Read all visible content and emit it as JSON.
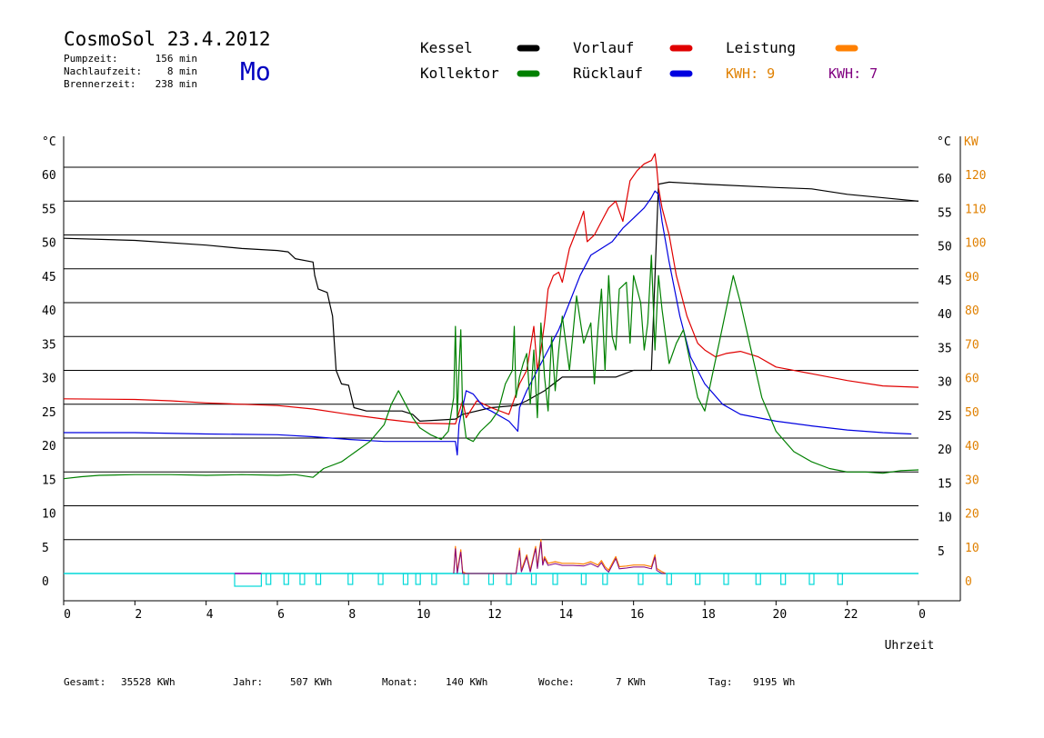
{
  "header": {
    "title": "CosmoSol 23.4.2012",
    "day": "Mo",
    "stats": [
      {
        "label": "Pumpzeit:",
        "value": "156 min"
      },
      {
        "label": "Nachlaufzeit:",
        "value": "8 min"
      },
      {
        "label": "Brennerzeit:",
        "value": "238 min"
      }
    ]
  },
  "legend": {
    "items": [
      {
        "label": "Kessel",
        "color": "#000000"
      },
      {
        "label": "Vorlauf",
        "color": "#e00000"
      },
      {
        "label": "Leistung",
        "color": "#ff8000"
      },
      {
        "label": "Kollektor",
        "color": "#008000"
      },
      {
        "label": "Rücklauf",
        "color": "#0000e0"
      }
    ],
    "kwh": [
      {
        "text": "KWH: 9",
        "color": "#e08000"
      },
      {
        "text": "KWH: 7",
        "color": "#800080"
      }
    ]
  },
  "footer": [
    {
      "label": "Gesamt:",
      "value": "35528 KWh"
    },
    {
      "label": "Jahr:",
      "value": "507 KWh"
    },
    {
      "label": "Monat:",
      "value": "140 KWh"
    },
    {
      "label": "Woche:",
      "value": "7 KWh"
    },
    {
      "label": "Tag:",
      "value": "9195 Wh"
    }
  ],
  "chart_data": {
    "type": "line",
    "xlabel": "Uhrzeit",
    "ylabel": "°C",
    "y2label": "KW",
    "xlim": [
      0,
      24
    ],
    "ylim": [
      0,
      65
    ],
    "y2lim": [
      0,
      130
    ],
    "x_ticks": [
      "0",
      "2",
      "4",
      "6",
      "8",
      "10",
      "12",
      "14",
      "16",
      "18",
      "20",
      "22",
      "0"
    ],
    "y_ticks": [
      "0",
      "5",
      "10",
      "15",
      "20",
      "25",
      "30",
      "35",
      "40",
      "45",
      "50",
      "55",
      "60"
    ],
    "y2_ticks": [
      "0",
      "10",
      "20",
      "30",
      "40",
      "50",
      "60",
      "70",
      "80",
      "90",
      "100",
      "110",
      "120"
    ],
    "grid": true,
    "series": [
      {
        "name": "Kessel",
        "color": "#000000",
        "points": [
          [
            0,
            49.5
          ],
          [
            2,
            49.2
          ],
          [
            4,
            48.5
          ],
          [
            5,
            48
          ],
          [
            6,
            47.7
          ],
          [
            6.3,
            47.5
          ],
          [
            6.5,
            46.5
          ],
          [
            7,
            46
          ],
          [
            7.05,
            44
          ],
          [
            7.15,
            42
          ],
          [
            7.4,
            41.5
          ],
          [
            7.55,
            38
          ],
          [
            7.65,
            30
          ],
          [
            7.8,
            28
          ],
          [
            8,
            27.8
          ],
          [
            8.15,
            24.5
          ],
          [
            8.5,
            24
          ],
          [
            9.5,
            24
          ],
          [
            9.8,
            23.5
          ],
          [
            10,
            22.5
          ],
          [
            11,
            22.8
          ],
          [
            11.2,
            23.5
          ],
          [
            12,
            24.5
          ],
          [
            12.7,
            24.8
          ],
          [
            13,
            25.5
          ],
          [
            13.5,
            27
          ],
          [
            14,
            29
          ],
          [
            15,
            29
          ],
          [
            15.5,
            29
          ],
          [
            16,
            30
          ],
          [
            16.5,
            30
          ],
          [
            16.7,
            57.5
          ],
          [
            17,
            57.8
          ],
          [
            18,
            57.5
          ],
          [
            20,
            57
          ],
          [
            21,
            56.8
          ],
          [
            22,
            56
          ],
          [
            24,
            55
          ]
        ]
      },
      {
        "name": "Vorlauf",
        "color": "#e00000",
        "points": [
          [
            0,
            25.8
          ],
          [
            2,
            25.7
          ],
          [
            3,
            25.5
          ],
          [
            4,
            25.2
          ],
          [
            5,
            25
          ],
          [
            6,
            24.8
          ],
          [
            7,
            24.3
          ],
          [
            8,
            23.5
          ],
          [
            9,
            22.8
          ],
          [
            10,
            22.2
          ],
          [
            11,
            22.1
          ],
          [
            11.2,
            25.5
          ],
          [
            11.3,
            23
          ],
          [
            11.6,
            25.5
          ],
          [
            12,
            24.5
          ],
          [
            12.5,
            23.5
          ],
          [
            12.8,
            28
          ],
          [
            13.0,
            30
          ],
          [
            13.2,
            36.5
          ],
          [
            13.3,
            30
          ],
          [
            13.4,
            33
          ],
          [
            13.5,
            37
          ],
          [
            13.6,
            42
          ],
          [
            13.75,
            44
          ],
          [
            13.9,
            44.5
          ],
          [
            14.0,
            43
          ],
          [
            14.2,
            48
          ],
          [
            14.5,
            52
          ],
          [
            14.6,
            53.5
          ],
          [
            14.7,
            49
          ],
          [
            14.9,
            50
          ],
          [
            15.1,
            52
          ],
          [
            15.3,
            54
          ],
          [
            15.5,
            55
          ],
          [
            15.7,
            52
          ],
          [
            15.9,
            58
          ],
          [
            16.1,
            59.5
          ],
          [
            16.3,
            60.5
          ],
          [
            16.5,
            61
          ],
          [
            16.6,
            62
          ],
          [
            16.65,
            60
          ],
          [
            16.7,
            57
          ],
          [
            16.8,
            54
          ],
          [
            17,
            50
          ],
          [
            17.2,
            44
          ],
          [
            17.5,
            38
          ],
          [
            17.8,
            34
          ],
          [
            18,
            33
          ],
          [
            18.3,
            32
          ],
          [
            18.6,
            32.5
          ],
          [
            19,
            32.8
          ],
          [
            19.5,
            32
          ],
          [
            20,
            30.5
          ],
          [
            21,
            29.5
          ],
          [
            22,
            28.5
          ],
          [
            23,
            27.7
          ],
          [
            24,
            27.5
          ]
        ]
      },
      {
        "name": "Rücklauf",
        "color": "#0000e0",
        "points": [
          [
            0,
            20.8
          ],
          [
            2,
            20.8
          ],
          [
            4,
            20.6
          ],
          [
            6,
            20.5
          ],
          [
            7,
            20.2
          ],
          [
            8,
            19.8
          ],
          [
            9,
            19.5
          ],
          [
            10,
            19.5
          ],
          [
            11,
            19.5
          ],
          [
            11.05,
            17.5
          ],
          [
            11.1,
            22
          ],
          [
            11.3,
            27
          ],
          [
            11.5,
            26.5
          ],
          [
            11.8,
            24.5
          ],
          [
            12,
            24
          ],
          [
            12.5,
            22.5
          ],
          [
            12.75,
            21
          ],
          [
            12.8,
            24.5
          ],
          [
            13,
            27
          ],
          [
            13.3,
            30
          ],
          [
            13.6,
            33
          ],
          [
            13.9,
            36
          ],
          [
            14.2,
            40
          ],
          [
            14.5,
            44
          ],
          [
            14.8,
            47
          ],
          [
            15.1,
            48
          ],
          [
            15.4,
            49
          ],
          [
            15.7,
            51
          ],
          [
            16,
            52.5
          ],
          [
            16.3,
            54
          ],
          [
            16.5,
            55.5
          ],
          [
            16.6,
            56.5
          ],
          [
            16.7,
            56
          ],
          [
            16.8,
            52
          ],
          [
            17,
            46
          ],
          [
            17.3,
            38
          ],
          [
            17.6,
            32
          ],
          [
            18,
            28
          ],
          [
            18.5,
            25
          ],
          [
            19,
            23.5
          ],
          [
            19.5,
            23
          ],
          [
            20,
            22.5
          ],
          [
            21,
            21.8
          ],
          [
            22,
            21.2
          ],
          [
            23,
            20.8
          ],
          [
            23.8,
            20.6
          ]
        ]
      },
      {
        "name": "Kollektor",
        "color": "#008000",
        "points": [
          [
            0,
            14
          ],
          [
            0.5,
            14.3
          ],
          [
            1,
            14.5
          ],
          [
            2,
            14.6
          ],
          [
            3,
            14.6
          ],
          [
            4,
            14.5
          ],
          [
            5,
            14.6
          ],
          [
            6,
            14.5
          ],
          [
            6.5,
            14.6
          ],
          [
            7,
            14.2
          ],
          [
            7.3,
            15.5
          ],
          [
            7.8,
            16.5
          ],
          [
            8.2,
            18
          ],
          [
            8.6,
            19.5
          ],
          [
            9,
            22
          ],
          [
            9.2,
            25
          ],
          [
            9.4,
            27
          ],
          [
            9.6,
            25
          ],
          [
            9.8,
            23
          ],
          [
            10,
            21.5
          ],
          [
            10.3,
            20.5
          ],
          [
            10.6,
            19.8
          ],
          [
            10.8,
            21
          ],
          [
            10.95,
            26
          ],
          [
            11.0,
            36.5
          ],
          [
            11.05,
            23
          ],
          [
            11.1,
            30
          ],
          [
            11.15,
            36
          ],
          [
            11.2,
            24
          ],
          [
            11.3,
            20
          ],
          [
            11.5,
            19.5
          ],
          [
            11.7,
            21
          ],
          [
            12,
            22.5
          ],
          [
            12.2,
            24
          ],
          [
            12.4,
            28
          ],
          [
            12.6,
            30
          ],
          [
            12.65,
            36.5
          ],
          [
            12.7,
            26
          ],
          [
            12.8,
            29
          ],
          [
            12.9,
            31
          ],
          [
            13.0,
            32.5
          ],
          [
            13.1,
            25
          ],
          [
            13.2,
            33
          ],
          [
            13.3,
            23
          ],
          [
            13.4,
            37
          ],
          [
            13.5,
            29
          ],
          [
            13.6,
            24
          ],
          [
            13.7,
            35
          ],
          [
            13.8,
            27
          ],
          [
            13.9,
            33
          ],
          [
            14,
            38
          ],
          [
            14.2,
            30
          ],
          [
            14.4,
            41
          ],
          [
            14.6,
            34
          ],
          [
            14.8,
            37
          ],
          [
            14.9,
            28
          ],
          [
            15.0,
            36
          ],
          [
            15.1,
            42
          ],
          [
            15.2,
            30
          ],
          [
            15.3,
            44
          ],
          [
            15.4,
            35
          ],
          [
            15.5,
            33
          ],
          [
            15.6,
            42
          ],
          [
            15.8,
            43
          ],
          [
            15.9,
            34
          ],
          [
            16.0,
            44
          ],
          [
            16.1,
            42
          ],
          [
            16.2,
            40
          ],
          [
            16.3,
            33
          ],
          [
            16.4,
            37
          ],
          [
            16.5,
            47
          ],
          [
            16.6,
            33
          ],
          [
            16.7,
            44
          ],
          [
            16.8,
            39
          ],
          [
            17.0,
            31
          ],
          [
            17.2,
            34
          ],
          [
            17.4,
            36
          ],
          [
            17.6,
            31
          ],
          [
            17.8,
            26
          ],
          [
            18.0,
            24
          ],
          [
            18.2,
            29
          ],
          [
            18.4,
            34
          ],
          [
            18.6,
            39
          ],
          [
            18.8,
            44
          ],
          [
            19.0,
            40
          ],
          [
            19.3,
            33
          ],
          [
            19.6,
            26
          ],
          [
            20,
            21
          ],
          [
            20.5,
            18
          ],
          [
            21,
            16.5
          ],
          [
            21.5,
            15.5
          ],
          [
            22,
            15
          ],
          [
            22.5,
            15
          ],
          [
            23,
            14.8
          ],
          [
            23.5,
            15.2
          ],
          [
            24,
            15.3
          ]
        ]
      },
      {
        "name": "Leistung",
        "color": "#ff8000",
        "points": [
          [
            10.95,
            0
          ],
          [
            11.0,
            8
          ],
          [
            11.05,
            0.5
          ],
          [
            11.15,
            7
          ],
          [
            11.2,
            0.5
          ],
          [
            11.3,
            0
          ],
          [
            12.7,
            0
          ],
          [
            12.8,
            7.5
          ],
          [
            12.85,
            1
          ],
          [
            13.0,
            5.5
          ],
          [
            13.1,
            1
          ],
          [
            13.25,
            8
          ],
          [
            13.3,
            2
          ],
          [
            13.4,
            10
          ],
          [
            13.45,
            3
          ],
          [
            13.5,
            5
          ],
          [
            13.6,
            3
          ],
          [
            13.8,
            3.5
          ],
          [
            14,
            3
          ],
          [
            14.3,
            3
          ],
          [
            14.6,
            2.8
          ],
          [
            14.8,
            3.5
          ],
          [
            15,
            2.5
          ],
          [
            15.1,
            3.8
          ],
          [
            15.2,
            2
          ],
          [
            15.3,
            1
          ],
          [
            15.5,
            5
          ],
          [
            15.6,
            2
          ],
          [
            15.8,
            2.2
          ],
          [
            16,
            2.5
          ],
          [
            16.3,
            2.5
          ],
          [
            16.5,
            2
          ],
          [
            16.6,
            5.5
          ],
          [
            16.65,
            1.5
          ],
          [
            16.8,
            0.5
          ],
          [
            16.9,
            0
          ]
        ]
      }
    ]
  }
}
